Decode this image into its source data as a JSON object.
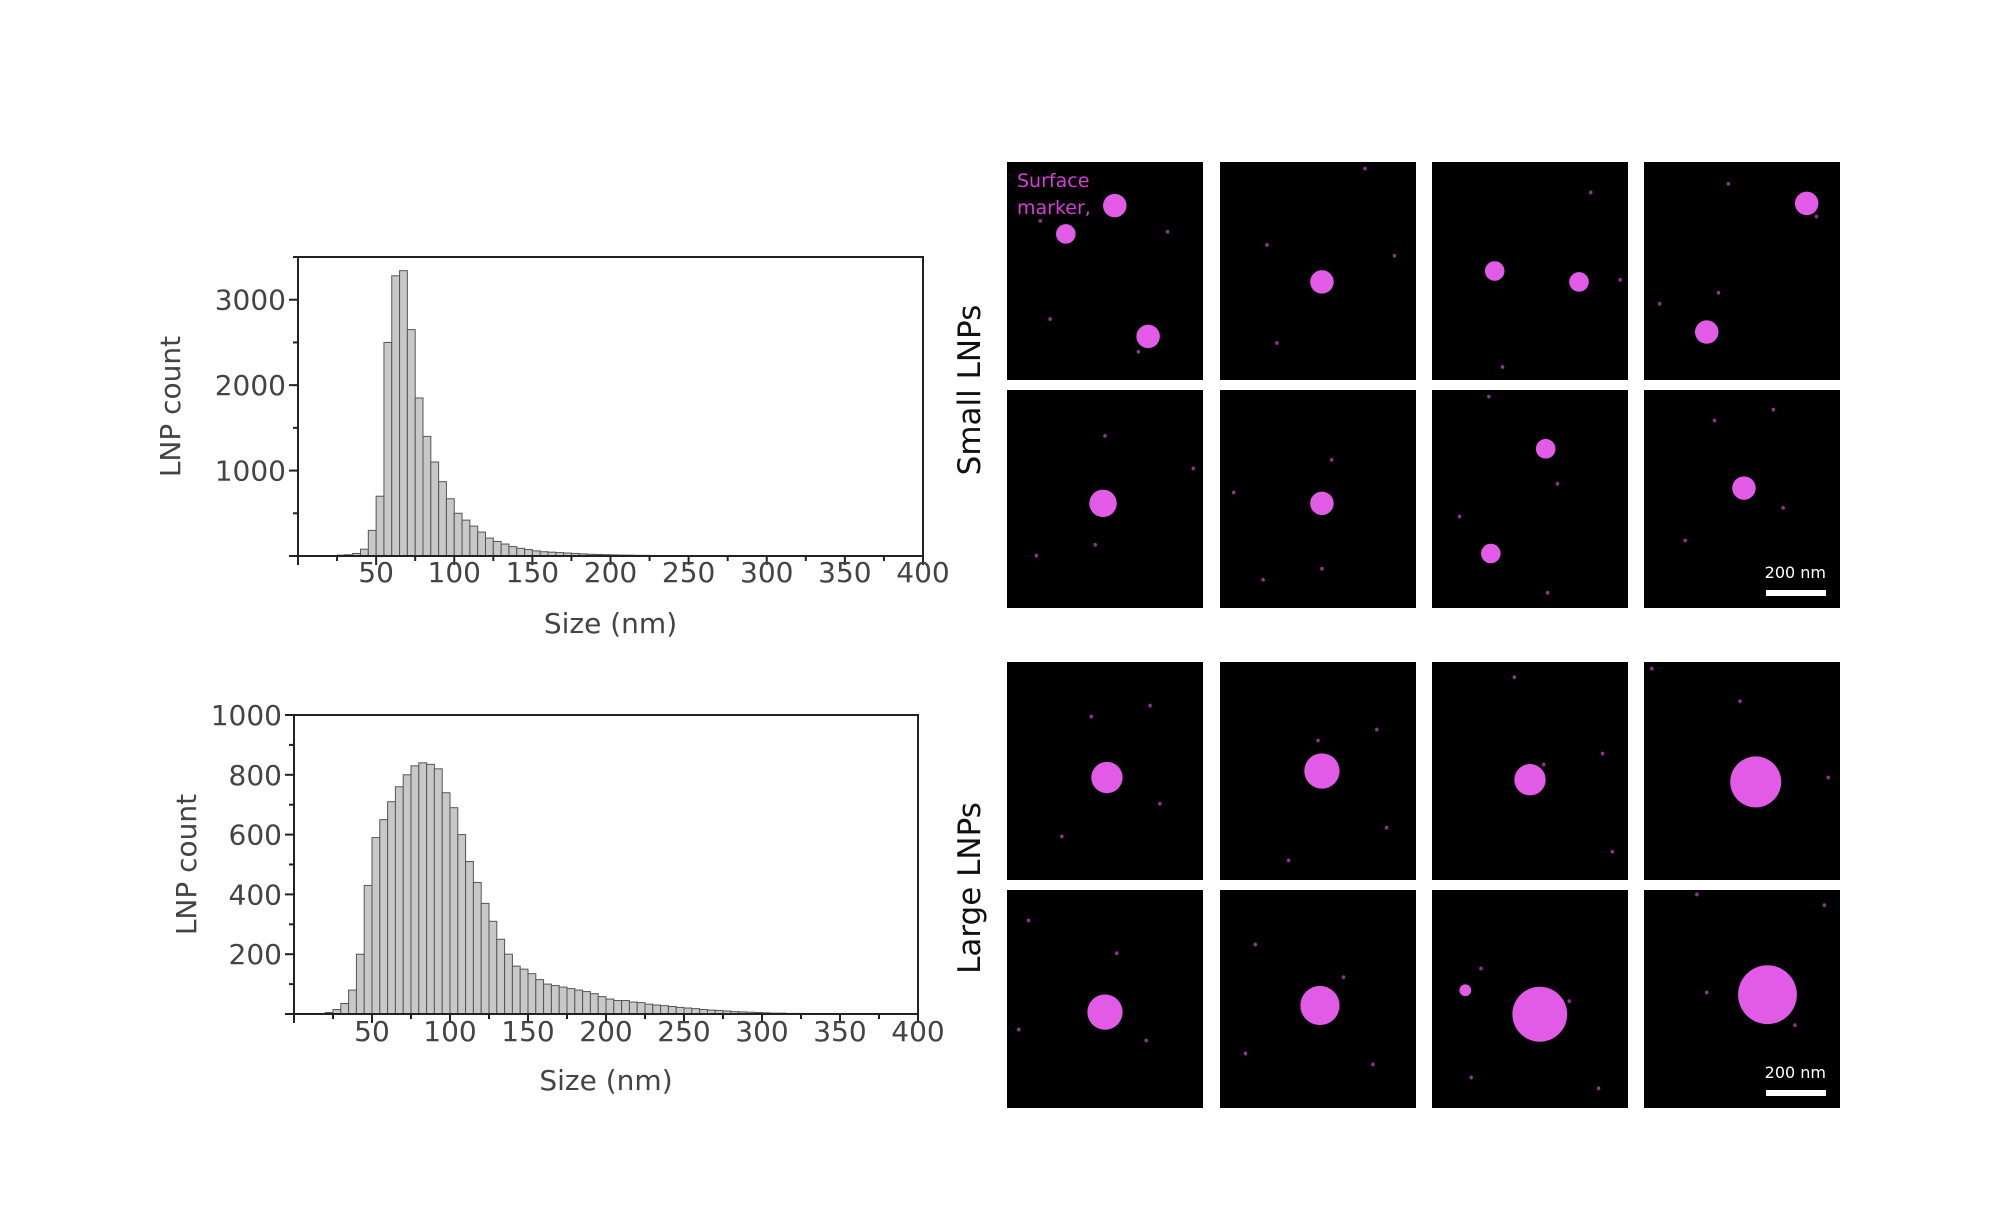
{
  "chart_data": [
    {
      "type": "bar",
      "xlabel": "Size (nm)",
      "ylabel": "LNP count",
      "xlim": [
        0,
        400
      ],
      "ylim": [
        0,
        3500
      ],
      "xticks": [
        50,
        100,
        150,
        200,
        250,
        300,
        350,
        400
      ],
      "yticks": [
        1000,
        2000,
        3000
      ],
      "bin_width": 5,
      "bins": [
        [
          20,
          5
        ],
        [
          25,
          10
        ],
        [
          30,
          15
        ],
        [
          35,
          30
        ],
        [
          40,
          80
        ],
        [
          45,
          300
        ],
        [
          50,
          700
        ],
        [
          55,
          2500
        ],
        [
          60,
          3280
        ],
        [
          65,
          3340
        ],
        [
          70,
          2650
        ],
        [
          75,
          1850
        ],
        [
          80,
          1400
        ],
        [
          85,
          1100
        ],
        [
          90,
          870
        ],
        [
          95,
          670
        ],
        [
          100,
          500
        ],
        [
          105,
          420
        ],
        [
          110,
          350
        ],
        [
          115,
          280
        ],
        [
          120,
          210
        ],
        [
          125,
          170
        ],
        [
          130,
          140
        ],
        [
          135,
          110
        ],
        [
          140,
          90
        ],
        [
          145,
          75
        ],
        [
          150,
          60
        ],
        [
          155,
          50
        ],
        [
          160,
          45
        ],
        [
          165,
          40
        ],
        [
          170,
          35
        ],
        [
          175,
          30
        ],
        [
          180,
          25
        ],
        [
          185,
          20
        ],
        [
          190,
          18
        ],
        [
          195,
          15
        ],
        [
          200,
          13
        ],
        [
          205,
          11
        ],
        [
          210,
          10
        ],
        [
          215,
          8
        ],
        [
          220,
          7
        ],
        [
          225,
          6
        ],
        [
          230,
          5
        ],
        [
          235,
          5
        ],
        [
          240,
          4
        ],
        [
          245,
          4
        ],
        [
          250,
          3
        ],
        [
          255,
          3
        ],
        [
          260,
          3
        ],
        [
          265,
          2
        ],
        [
          270,
          2
        ],
        [
          275,
          2
        ],
        [
          280,
          2
        ],
        [
          285,
          1
        ],
        [
          290,
          1
        ],
        [
          295,
          1
        ],
        [
          300,
          1
        ]
      ]
    },
    {
      "type": "bar",
      "xlabel": "Size (nm)",
      "ylabel": "LNP count",
      "xlim": [
        0,
        400
      ],
      "ylim": [
        0,
        1000
      ],
      "xticks": [
        50,
        100,
        150,
        200,
        250,
        300,
        350,
        400
      ],
      "yticks": [
        200,
        400,
        600,
        800,
        1000
      ],
      "bin_width": 5,
      "bins": [
        [
          20,
          5
        ],
        [
          25,
          15
        ],
        [
          30,
          35
        ],
        [
          35,
          80
        ],
        [
          40,
          200
        ],
        [
          45,
          430
        ],
        [
          50,
          590
        ],
        [
          55,
          650
        ],
        [
          60,
          710
        ],
        [
          65,
          760
        ],
        [
          70,
          800
        ],
        [
          75,
          830
        ],
        [
          80,
          840
        ],
        [
          85,
          835
        ],
        [
          90,
          820
        ],
        [
          95,
          740
        ],
        [
          100,
          690
        ],
        [
          105,
          600
        ],
        [
          110,
          510
        ],
        [
          115,
          440
        ],
        [
          120,
          370
        ],
        [
          125,
          310
        ],
        [
          130,
          250
        ],
        [
          135,
          200
        ],
        [
          140,
          160
        ],
        [
          145,
          150
        ],
        [
          150,
          135
        ],
        [
          155,
          115
        ],
        [
          160,
          100
        ],
        [
          165,
          95
        ],
        [
          170,
          90
        ],
        [
          175,
          85
        ],
        [
          180,
          80
        ],
        [
          185,
          75
        ],
        [
          190,
          68
        ],
        [
          195,
          58
        ],
        [
          200,
          50
        ],
        [
          205,
          45
        ],
        [
          210,
          45
        ],
        [
          215,
          40
        ],
        [
          220,
          38
        ],
        [
          225,
          33
        ],
        [
          230,
          30
        ],
        [
          235,
          28
        ],
        [
          240,
          25
        ],
        [
          245,
          22
        ],
        [
          250,
          20
        ],
        [
          255,
          18
        ],
        [
          260,
          15
        ],
        [
          265,
          13
        ],
        [
          270,
          12
        ],
        [
          275,
          10
        ],
        [
          280,
          8
        ],
        [
          285,
          7
        ],
        [
          290,
          6
        ],
        [
          295,
          5
        ],
        [
          300,
          4
        ],
        [
          305,
          3
        ],
        [
          310,
          3
        ],
        [
          315,
          2
        ],
        [
          320,
          2
        ],
        [
          325,
          1
        ],
        [
          330,
          1
        ]
      ]
    }
  ],
  "micrographs": {
    "overlay_label": [
      "Surface",
      "marker,"
    ],
    "row_labels": [
      "Small LNPs",
      "Large LNPs"
    ],
    "scale_bar_label": "200 nm",
    "particle_color": "#e25be6",
    "background_color": "#000000"
  }
}
